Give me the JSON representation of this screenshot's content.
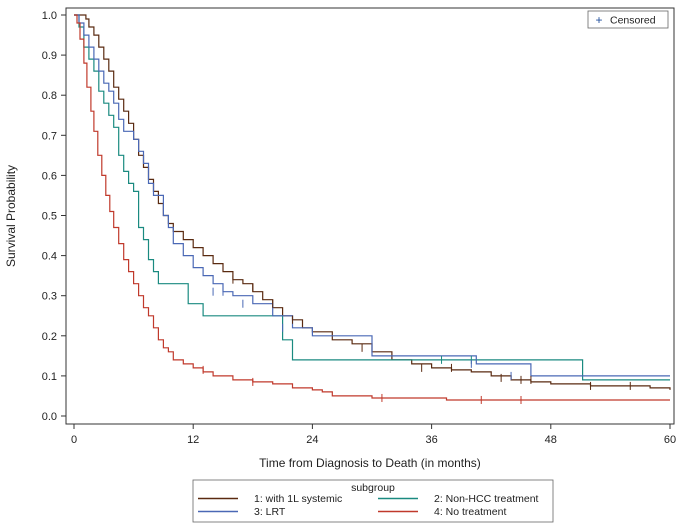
{
  "chart_data": {
    "type": "line",
    "subtype": "kaplan-meier",
    "xlabel": "Time from Diagnosis to Death (in months)",
    "ylabel": "Survival Probability",
    "xlim": [
      0,
      60
    ],
    "ylim": [
      0,
      1.0
    ],
    "xticks": [
      0,
      12,
      24,
      36,
      48,
      60
    ],
    "yticks": [
      0.0,
      0.1,
      0.2,
      0.3,
      0.4,
      0.5,
      0.6,
      0.7,
      0.8,
      0.9,
      1.0
    ],
    "yticklabels": [
      "0.0",
      "0.1",
      "0.2",
      "0.3",
      "0.4",
      "0.5",
      "0.6",
      "0.7",
      "0.8",
      "0.9",
      "1.0"
    ],
    "censored_legend": {
      "symbol": "+",
      "label": "Censored",
      "color": "#1f4e9c"
    },
    "legend_title": "subgroup",
    "series": [
      {
        "name": "1: with 1L systemic",
        "color": "#5a2a10",
        "points": [
          [
            0,
            1.0
          ],
          [
            0.8,
            1.0
          ],
          [
            1.2,
            0.99
          ],
          [
            1.5,
            0.97
          ],
          [
            2,
            0.95
          ],
          [
            2.5,
            0.92
          ],
          [
            3,
            0.89
          ],
          [
            3.5,
            0.86
          ],
          [
            4,
            0.82
          ],
          [
            4.5,
            0.79
          ],
          [
            5,
            0.76
          ],
          [
            5.5,
            0.73
          ],
          [
            6,
            0.69
          ],
          [
            6.5,
            0.65
          ],
          [
            7,
            0.62
          ],
          [
            7.5,
            0.59
          ],
          [
            8,
            0.56
          ],
          [
            8.5,
            0.53
          ],
          [
            9,
            0.5
          ],
          [
            9.5,
            0.48
          ],
          [
            10,
            0.46
          ],
          [
            11,
            0.44
          ],
          [
            12,
            0.42
          ],
          [
            13,
            0.4
          ],
          [
            14,
            0.38
          ],
          [
            15,
            0.36
          ],
          [
            16,
            0.34
          ],
          [
            17,
            0.33
          ],
          [
            18,
            0.31
          ],
          [
            19,
            0.29
          ],
          [
            20,
            0.27
          ],
          [
            21,
            0.25
          ],
          [
            22,
            0.24
          ],
          [
            23,
            0.22
          ],
          [
            24,
            0.21
          ],
          [
            26,
            0.19
          ],
          [
            28,
            0.18
          ],
          [
            30,
            0.16
          ],
          [
            32,
            0.14
          ],
          [
            34,
            0.13
          ],
          [
            36,
            0.12
          ],
          [
            38,
            0.115
          ],
          [
            40,
            0.11
          ],
          [
            42,
            0.1
          ],
          [
            44,
            0.09
          ],
          [
            46,
            0.085
          ],
          [
            48,
            0.08
          ],
          [
            52,
            0.075
          ],
          [
            56,
            0.075
          ],
          [
            58,
            0.07
          ],
          [
            60,
            0.065
          ]
        ],
        "censored": [
          [
            16,
            0.34
          ],
          [
            18,
            0.32
          ],
          [
            20,
            0.28
          ],
          [
            22,
            0.24
          ],
          [
            29,
            0.17
          ],
          [
            35,
            0.12
          ],
          [
            38,
            0.12
          ],
          [
            43,
            0.095
          ],
          [
            45,
            0.09
          ],
          [
            46,
            0.09
          ],
          [
            52,
            0.075
          ],
          [
            56,
            0.075
          ]
        ]
      },
      {
        "name": "2: Non-HCC treatment",
        "color": "#1a8a80",
        "points": [
          [
            0,
            1.0
          ],
          [
            0.5,
            0.97
          ],
          [
            1,
            0.92
          ],
          [
            1.5,
            0.89
          ],
          [
            2,
            0.86
          ],
          [
            2.5,
            0.81
          ],
          [
            3,
            0.78
          ],
          [
            3.5,
            0.75
          ],
          [
            4,
            0.72
          ],
          [
            4.5,
            0.65
          ],
          [
            5,
            0.61
          ],
          [
            5.5,
            0.58
          ],
          [
            6,
            0.56
          ],
          [
            6.5,
            0.47
          ],
          [
            7,
            0.44
          ],
          [
            7.5,
            0.39
          ],
          [
            8,
            0.36
          ],
          [
            8.5,
            0.33
          ],
          [
            11,
            0.33
          ],
          [
            11.5,
            0.28
          ],
          [
            13,
            0.25
          ],
          [
            20,
            0.25
          ],
          [
            21,
            0.19
          ],
          [
            22,
            0.14
          ],
          [
            40,
            0.14
          ],
          [
            51,
            0.14
          ],
          [
            51.2,
            0.09
          ],
          [
            60,
            0.09
          ]
        ],
        "censored": [
          [
            37,
            0.14
          ],
          [
            40,
            0.14
          ]
        ]
      },
      {
        "name": "3: LRT",
        "color": "#4a68b5",
        "points": [
          [
            0,
            1.0
          ],
          [
            0.5,
            0.98
          ],
          [
            1,
            0.95
          ],
          [
            1.5,
            0.92
          ],
          [
            2,
            0.89
          ],
          [
            2.5,
            0.86
          ],
          [
            3,
            0.83
          ],
          [
            3.5,
            0.81
          ],
          [
            4,
            0.78
          ],
          [
            4.5,
            0.74
          ],
          [
            5,
            0.71
          ],
          [
            6,
            0.69
          ],
          [
            6.5,
            0.66
          ],
          [
            7,
            0.63
          ],
          [
            7.5,
            0.58
          ],
          [
            8,
            0.55
          ],
          [
            9,
            0.5
          ],
          [
            9.5,
            0.47
          ],
          [
            10,
            0.43
          ],
          [
            11,
            0.4
          ],
          [
            12,
            0.37
          ],
          [
            13,
            0.35
          ],
          [
            14,
            0.33
          ],
          [
            15,
            0.31
          ],
          [
            16,
            0.3
          ],
          [
            18,
            0.28
          ],
          [
            20,
            0.25
          ],
          [
            22,
            0.22
          ],
          [
            24,
            0.2
          ],
          [
            26,
            0.2
          ],
          [
            28,
            0.2
          ],
          [
            30,
            0.15
          ],
          [
            32,
            0.15
          ],
          [
            36,
            0.15
          ],
          [
            40,
            0.15
          ],
          [
            40.5,
            0.13
          ],
          [
            42,
            0.13
          ],
          [
            46,
            0.1
          ],
          [
            60,
            0.1
          ]
        ],
        "censored": [
          [
            14,
            0.31
          ],
          [
            15,
            0.31
          ],
          [
            17,
            0.28
          ],
          [
            21,
            0.22
          ],
          [
            30,
            0.16
          ],
          [
            40,
            0.13
          ],
          [
            44,
            0.1
          ]
        ]
      },
      {
        "name": "4: No treatment",
        "color": "#c0392b",
        "points": [
          [
            0,
            1.0
          ],
          [
            0.3,
            0.98
          ],
          [
            0.6,
            0.94
          ],
          [
            1,
            0.88
          ],
          [
            1.3,
            0.82
          ],
          [
            1.7,
            0.76
          ],
          [
            2,
            0.71
          ],
          [
            2.4,
            0.65
          ],
          [
            2.8,
            0.6
          ],
          [
            3.2,
            0.55
          ],
          [
            3.6,
            0.51
          ],
          [
            4,
            0.47
          ],
          [
            4.5,
            0.43
          ],
          [
            5,
            0.39
          ],
          [
            5.5,
            0.36
          ],
          [
            6,
            0.33
          ],
          [
            6.5,
            0.3
          ],
          [
            7,
            0.27
          ],
          [
            7.5,
            0.25
          ],
          [
            8,
            0.22
          ],
          [
            8.5,
            0.19
          ],
          [
            9,
            0.17
          ],
          [
            9.5,
            0.16
          ],
          [
            10,
            0.14
          ],
          [
            11,
            0.13
          ],
          [
            12,
            0.12
          ],
          [
            13,
            0.11
          ],
          [
            14,
            0.1
          ],
          [
            16,
            0.09
          ],
          [
            18,
            0.085
          ],
          [
            20,
            0.08
          ],
          [
            22,
            0.07
          ],
          [
            24,
            0.065
          ],
          [
            25,
            0.06
          ],
          [
            26,
            0.05
          ],
          [
            28,
            0.05
          ],
          [
            30,
            0.045
          ],
          [
            37,
            0.045
          ],
          [
            37.5,
            0.04
          ],
          [
            60,
            0.04
          ]
        ],
        "censored": [
          [
            13,
            0.115
          ],
          [
            18,
            0.085
          ],
          [
            31,
            0.045
          ],
          [
            41,
            0.04
          ],
          [
            45,
            0.04
          ]
        ]
      }
    ]
  }
}
